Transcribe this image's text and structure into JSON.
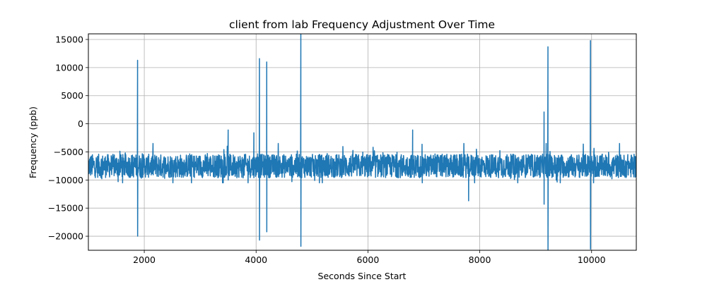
{
  "chart_data": {
    "type": "line",
    "title": "client from lab Frequency Adjustment Over Time",
    "xlabel": "Seconds Since Start",
    "ylabel": "Frequency (ppb)",
    "xlim": [
      1000,
      10800
    ],
    "ylim": [
      -22500,
      16000
    ],
    "xticks": [
      2000,
      4000,
      6000,
      8000,
      10000
    ],
    "yticks": [
      15000,
      10000,
      5000,
      0,
      -5000,
      -10000,
      -15000,
      -20000
    ],
    "xtick_labels": [
      "2000",
      "4000",
      "6000",
      "8000",
      "10000"
    ],
    "ytick_labels": [
      "15000",
      "10000",
      "5000",
      "0",
      "−5000",
      "−10000",
      "−15000",
      "−20000"
    ],
    "grid": true,
    "line_color": "#1f77b4",
    "series": [
      {
        "baseline": -7500,
        "noise_range": [
          -10500,
          -3500
        ],
        "spikes": [
          {
            "x": 1880,
            "high": 11300,
            "low": -20000
          },
          {
            "x": 3500,
            "high": -1100,
            "low": -10000
          },
          {
            "x": 3960,
            "high": -1600,
            "low": -9500
          },
          {
            "x": 4060,
            "high": 11600,
            "low": -20700
          },
          {
            "x": 4190,
            "high": 11000,
            "low": -19200
          },
          {
            "x": 4800,
            "high": 16000,
            "low": -21800
          },
          {
            "x": 6800,
            "high": -1100,
            "low": -9000
          },
          {
            "x": 7800,
            "high": -6000,
            "low": -13700
          },
          {
            "x": 9150,
            "high": 2100,
            "low": -14300
          },
          {
            "x": 9220,
            "high": 13700,
            "low": -22500
          },
          {
            "x": 9980,
            "high": 14800,
            "low": -22300
          }
        ]
      }
    ]
  }
}
